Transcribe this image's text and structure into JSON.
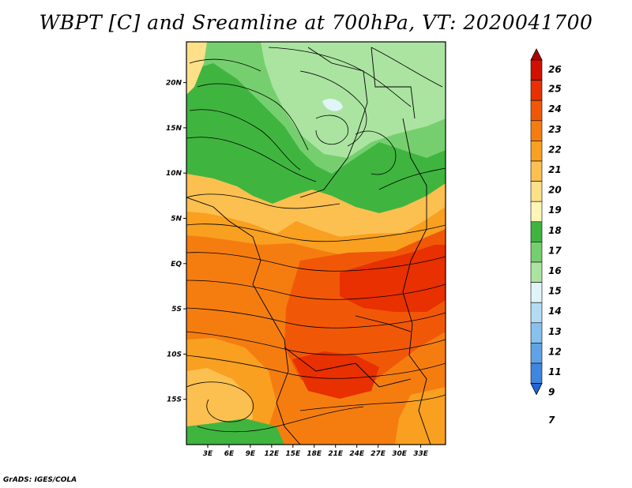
{
  "title": "WBPT [C] and Sreamline at 700hPa, VT: 2020041700",
  "footer": "GrADS: IGES/COLA",
  "chart_data": {
    "type": "heatmap",
    "variable": "Wet-bulb potential temperature",
    "units": "C",
    "level": "700hPa",
    "valid_time": "2020041700",
    "lat_range": [
      -20,
      24.5
    ],
    "lon_range": [
      0,
      36.5
    ],
    "y_ticks": [
      {
        "value": 20,
        "label": "20N"
      },
      {
        "value": 15,
        "label": "15N"
      },
      {
        "value": 10,
        "label": "10N"
      },
      {
        "value": 5,
        "label": "5N"
      },
      {
        "value": 0,
        "label": "EQ"
      },
      {
        "value": -5,
        "label": "5S"
      },
      {
        "value": -10,
        "label": "10S"
      },
      {
        "value": -15,
        "label": "15S"
      }
    ],
    "x_ticks": [
      {
        "value": 3,
        "label": "3E"
      },
      {
        "value": 6,
        "label": "6E"
      },
      {
        "value": 9,
        "label": "9E"
      },
      {
        "value": 12,
        "label": "12E"
      },
      {
        "value": 15,
        "label": "15E"
      },
      {
        "value": 18,
        "label": "18E"
      },
      {
        "value": 21,
        "label": "21E"
      },
      {
        "value": 24,
        "label": "24E"
      },
      {
        "value": 27,
        "label": "27E"
      },
      {
        "value": 30,
        "label": "30E"
      },
      {
        "value": 33,
        "label": "33E"
      }
    ],
    "colorbar": {
      "labels": [
        "26",
        "25",
        "24",
        "23",
        "22",
        "21",
        "20",
        "19",
        "18",
        "17",
        "16",
        "15",
        "14",
        "13",
        "12",
        "11",
        "9",
        "7"
      ],
      "colors": [
        "#b00000",
        "#d21000",
        "#e83000",
        "#f05808",
        "#f57d10",
        "#f9a020",
        "#fcc050",
        "#fee088",
        "#fff5b8",
        "#3fb53f",
        "#76cf6e",
        "#abe4a1",
        "#e0f5f8",
        "#b3dcf4",
        "#88c1ee",
        "#5fa3e6",
        "#3e86df",
        "#2166d8"
      ]
    }
  }
}
